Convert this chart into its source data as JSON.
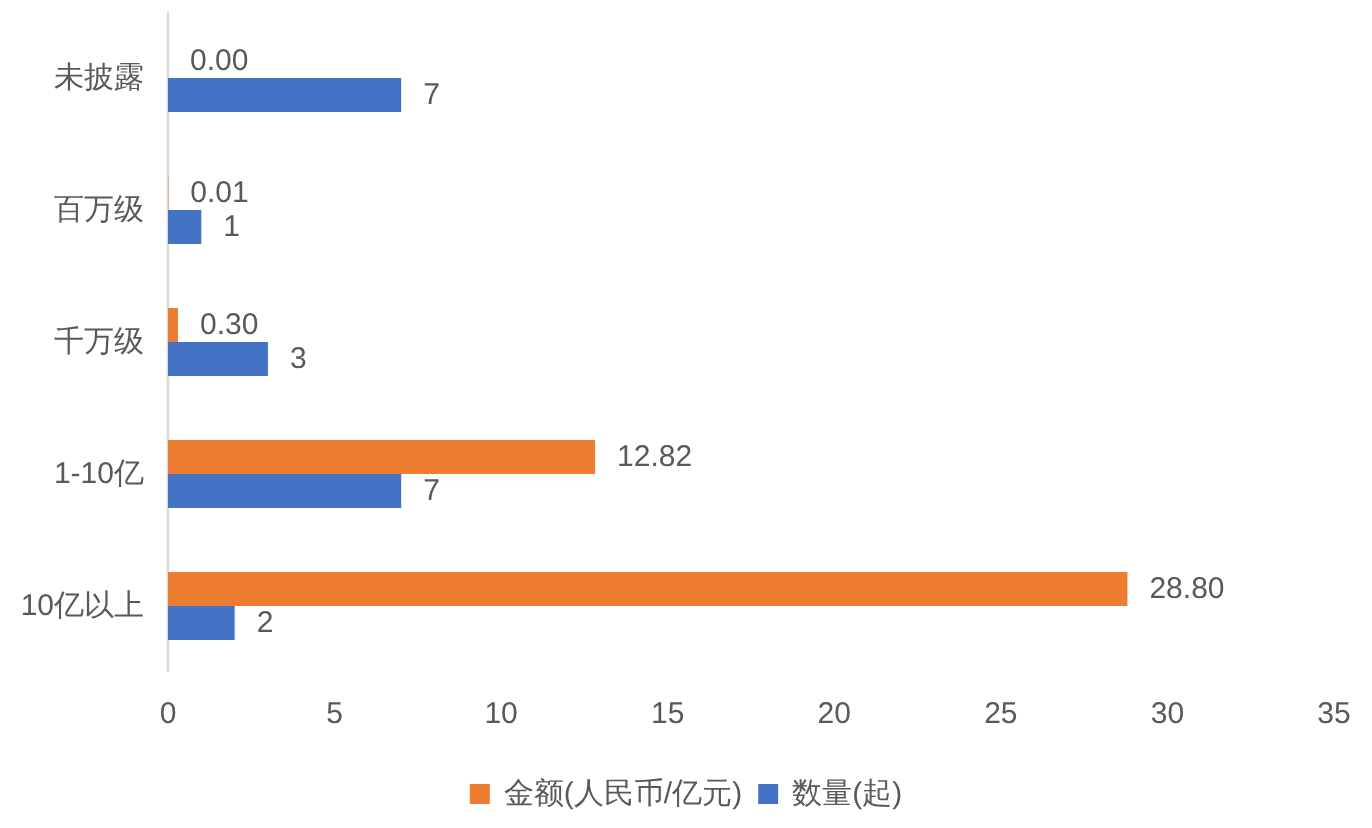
{
  "chart_data": {
    "type": "bar",
    "orientation": "horizontal",
    "categories": [
      "未披露",
      "百万级",
      "千万级",
      "1-10亿",
      "10亿以上"
    ],
    "series": [
      {
        "name": "金额(人民币/亿元)",
        "color": "#ed7d31",
        "values": [
          0,
          0.01,
          0.3,
          12.82,
          28.8
        ],
        "value_labels": [
          "0.00",
          "0.01",
          "0.30",
          "12.82",
          "28.80"
        ]
      },
      {
        "name": "数量(起)",
        "color": "#4472c4",
        "values": [
          7,
          1,
          3,
          7,
          2
        ],
        "value_labels": [
          "7",
          "1",
          "3",
          "7",
          "2"
        ]
      }
    ],
    "xlim": [
      0,
      35
    ],
    "xticks": [
      0,
      5,
      10,
      15,
      20,
      25,
      30,
      35
    ],
    "legend": "bottom"
  }
}
